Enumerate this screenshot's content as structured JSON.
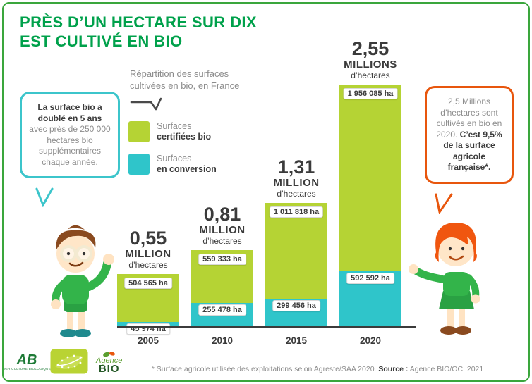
{
  "colors": {
    "frame_green": "#3aa63c",
    "title_green": "#00a14b",
    "certified_green": "#b5d334",
    "conversion_teal": "#2fc5ca",
    "bubble_teal": "#3cc5cb",
    "bubble_orange": "#e8560d",
    "text_dark": "#3b3b3b",
    "text_gray": "#8c8c8c"
  },
  "header": {
    "title_line1": "PRÈS D’UN HECTARE SUR DIX",
    "title_line2": "EST CULTIVÉ EN BIO"
  },
  "caption": {
    "line1": "Répartition des surfaces",
    "line2": "cultivées en bio, en France"
  },
  "legend": {
    "certified_top": "Surfaces",
    "certified_bottom": "certifiées bio",
    "conversion_top": "Surfaces",
    "conversion_bottom": "en conversion"
  },
  "left_bubble": {
    "bold": "La surface bio a doublé en 5 ans",
    "normal": "avec près de 250 000 hectares bio supplémentaires chaque année."
  },
  "right_bubble": {
    "normal": "2,5 Millions d’hectares sont cultivés en bio en 2020.",
    "bold": "C’est 9,5% de la surface agricole française*."
  },
  "chart_data": {
    "type": "bar",
    "stacked": true,
    "title": "Répartition des surfaces cultivées en bio, en France",
    "categories": [
      "2005",
      "2010",
      "2015",
      "2020"
    ],
    "series": [
      {
        "name": "Surfaces certifiées bio",
        "color": "#b5d334",
        "values": [
          504565,
          559333,
          1011818,
          1956085
        ]
      },
      {
        "name": "Surfaces en conversion",
        "color": "#2fc5ca",
        "values": [
          45974,
          255478,
          299456,
          592592
        ]
      }
    ],
    "unit": "ha",
    "ylim": [
      0,
      2600000
    ],
    "legend_position": "top-left",
    "grid": false,
    "totals": [
      {
        "value": "0,55",
        "unit": "MILLION",
        "sub": "d’hectares"
      },
      {
        "value": "0,81",
        "unit": "MILLION",
        "sub": "d’hectares"
      },
      {
        "value": "1,31",
        "unit": "MILLION",
        "sub": "d’hectares"
      },
      {
        "value": "2,55",
        "unit": "MILLIONS",
        "sub": "d’hectares"
      }
    ],
    "labels_certified": [
      "504 565 ha",
      "559 333 ha",
      "1 011 818 ha",
      "1 956 085 ha"
    ],
    "labels_conversion": [
      "45 974 ha",
      "255 478 ha",
      "299 456 ha",
      "592 592 ha"
    ]
  },
  "logos": {
    "ab_text": "AB",
    "ab_caption": "AGRICULTURE BIOLOGIQUE",
    "agence_top": "Agence",
    "agence_bottom": "BIO"
  },
  "footer": {
    "note": "* Surface agricole utilisée des exploitations selon Agreste/SAA 2020.",
    "source_label": "Source :",
    "source_value": " Agence BIO/OC, 2021"
  }
}
